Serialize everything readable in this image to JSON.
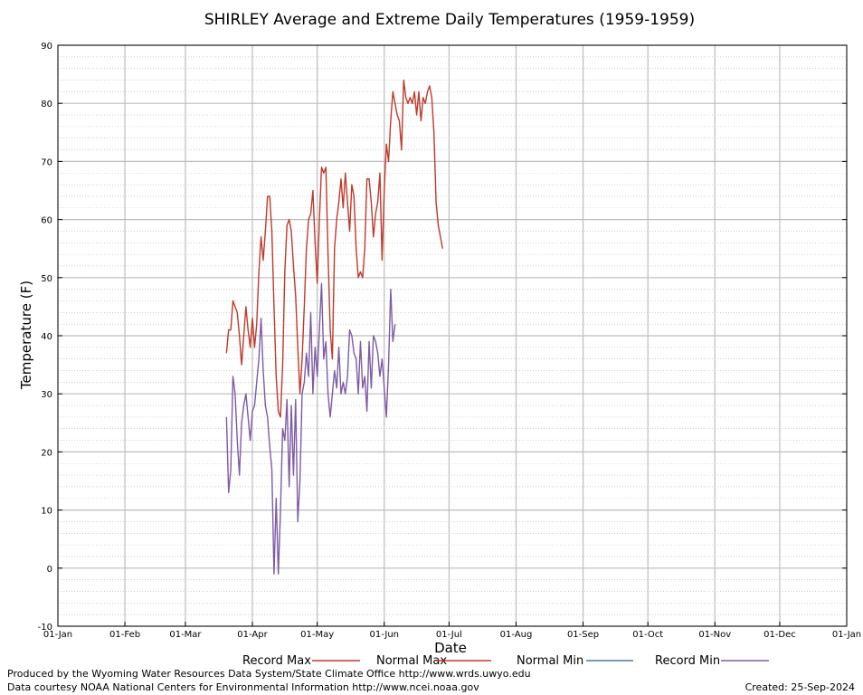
{
  "chart_data": {
    "type": "line",
    "title": "SHIRLEY Average and Extreme Daily Temperatures (1959-1959)",
    "xlabel": "Date",
    "ylabel": "Temperature (F)",
    "ylim": [
      -10,
      90
    ],
    "yticks": [
      -10,
      0,
      10,
      20,
      30,
      40,
      50,
      60,
      70,
      80,
      90
    ],
    "xlim": [
      1,
      366
    ],
    "xticks": [
      {
        "day": 1,
        "label": "01-Jan"
      },
      {
        "day": 32,
        "label": "01-Feb"
      },
      {
        "day": 60,
        "label": "01-Mar"
      },
      {
        "day": 91,
        "label": "01-Apr"
      },
      {
        "day": 121,
        "label": "01-May"
      },
      {
        "day": 152,
        "label": "01-Jun"
      },
      {
        "day": 182,
        "label": "01-Jul"
      },
      {
        "day": 213,
        "label": "01-Aug"
      },
      {
        "day": 244,
        "label": "01-Sep"
      },
      {
        "day": 274,
        "label": "01-Oct"
      },
      {
        "day": 305,
        "label": "01-Nov"
      },
      {
        "day": 335,
        "label": "01-Dec"
      },
      {
        "day": 366,
        "label": "01-Jan"
      }
    ],
    "grid": true,
    "legend_position": "bottom",
    "series": [
      {
        "name": "Record Max",
        "color": "#c0392b",
        "points": [
          [
            79,
            37
          ],
          [
            80,
            41
          ],
          [
            81,
            41
          ],
          [
            82,
            46
          ],
          [
            83,
            45
          ],
          [
            84,
            44
          ],
          [
            85,
            40
          ],
          [
            86,
            35
          ],
          [
            87,
            40
          ],
          [
            88,
            45
          ],
          [
            89,
            41
          ],
          [
            90,
            38
          ],
          [
            91,
            43
          ],
          [
            92,
            38
          ],
          [
            93,
            42
          ],
          [
            94,
            51
          ],
          [
            95,
            57
          ],
          [
            96,
            53
          ],
          [
            97,
            58
          ],
          [
            98,
            64
          ],
          [
            99,
            64
          ],
          [
            100,
            58
          ],
          [
            101,
            45
          ],
          [
            102,
            33
          ],
          [
            103,
            27
          ],
          [
            104,
            26
          ],
          [
            105,
            35
          ],
          [
            106,
            51
          ],
          [
            107,
            59
          ],
          [
            108,
            60
          ],
          [
            109,
            58
          ],
          [
            110,
            52
          ],
          [
            111,
            47
          ],
          [
            112,
            38
          ],
          [
            113,
            30
          ],
          [
            114,
            36
          ],
          [
            115,
            45
          ],
          [
            116,
            55
          ],
          [
            117,
            60
          ],
          [
            118,
            61
          ],
          [
            119,
            65
          ],
          [
            120,
            56
          ],
          [
            121,
            49
          ],
          [
            122,
            60
          ],
          [
            123,
            69
          ],
          [
            124,
            68
          ],
          [
            125,
            69
          ],
          [
            126,
            54
          ],
          [
            127,
            41
          ],
          [
            128,
            36
          ],
          [
            129,
            55
          ],
          [
            130,
            60
          ],
          [
            131,
            63
          ],
          [
            132,
            67
          ],
          [
            133,
            62
          ],
          [
            134,
            68
          ],
          [
            135,
            63
          ],
          [
            136,
            58
          ],
          [
            137,
            66
          ],
          [
            138,
            64
          ],
          [
            139,
            55
          ],
          [
            140,
            50
          ],
          [
            141,
            51
          ],
          [
            142,
            50
          ],
          [
            143,
            55
          ],
          [
            144,
            67
          ],
          [
            145,
            67
          ],
          [
            146,
            63
          ],
          [
            147,
            57
          ],
          [
            148,
            61
          ],
          [
            149,
            63
          ],
          [
            150,
            68
          ],
          [
            151,
            53
          ],
          [
            152,
            65
          ],
          [
            153,
            73
          ],
          [
            154,
            70
          ],
          [
            155,
            77
          ],
          [
            156,
            82
          ],
          [
            157,
            80
          ],
          [
            158,
            78
          ],
          [
            159,
            77
          ],
          [
            160,
            72
          ],
          [
            161,
            84
          ],
          [
            162,
            81
          ],
          [
            163,
            80
          ],
          [
            164,
            81
          ],
          [
            165,
            80
          ],
          [
            166,
            82
          ],
          [
            167,
            78
          ],
          [
            168,
            82
          ],
          [
            169,
            77
          ],
          [
            170,
            81
          ],
          [
            171,
            80
          ],
          [
            172,
            82
          ],
          [
            173,
            83
          ],
          [
            174,
            81
          ],
          [
            175,
            75
          ],
          [
            176,
            63
          ],
          [
            177,
            59
          ],
          [
            178,
            57
          ],
          [
            179,
            55
          ]
        ]
      },
      {
        "name": "Normal Max",
        "color": "#c0392b",
        "points": []
      },
      {
        "name": "Normal Min",
        "color": "#4a7aa7",
        "points": []
      },
      {
        "name": "Record Min",
        "color": "#7d5ba6",
        "points": [
          [
            79,
            26
          ],
          [
            80,
            13
          ],
          [
            81,
            17
          ],
          [
            82,
            33
          ],
          [
            83,
            30
          ],
          [
            84,
            22
          ],
          [
            85,
            16
          ],
          [
            86,
            25
          ],
          [
            87,
            28
          ],
          [
            88,
            30
          ],
          [
            89,
            26
          ],
          [
            90,
            22
          ],
          [
            91,
            27
          ],
          [
            92,
            28
          ],
          [
            93,
            32
          ],
          [
            94,
            36
          ],
          [
            95,
            43
          ],
          [
            96,
            34
          ],
          [
            97,
            28
          ],
          [
            98,
            26
          ],
          [
            99,
            21
          ],
          [
            100,
            17
          ],
          [
            101,
            -1
          ],
          [
            102,
            12
          ],
          [
            103,
            -1
          ],
          [
            104,
            10
          ],
          [
            105,
            24
          ],
          [
            106,
            22
          ],
          [
            107,
            29
          ],
          [
            108,
            14
          ],
          [
            109,
            28
          ],
          [
            110,
            16
          ],
          [
            111,
            29
          ],
          [
            112,
            8
          ],
          [
            113,
            15
          ],
          [
            114,
            30
          ],
          [
            115,
            32
          ],
          [
            116,
            37
          ],
          [
            117,
            33
          ],
          [
            118,
            44
          ],
          [
            119,
            30
          ],
          [
            120,
            38
          ],
          [
            121,
            33
          ],
          [
            122,
            41
          ],
          [
            123,
            49
          ],
          [
            124,
            36
          ],
          [
            125,
            39
          ],
          [
            126,
            30
          ],
          [
            127,
            26
          ],
          [
            128,
            30
          ],
          [
            129,
            34
          ],
          [
            130,
            31
          ],
          [
            131,
            38
          ],
          [
            132,
            30
          ],
          [
            133,
            32
          ],
          [
            134,
            30
          ],
          [
            135,
            33
          ],
          [
            136,
            41
          ],
          [
            137,
            40
          ],
          [
            138,
            37
          ],
          [
            139,
            36
          ],
          [
            140,
            30
          ],
          [
            141,
            39
          ],
          [
            142,
            31
          ],
          [
            143,
            33
          ],
          [
            144,
            27
          ],
          [
            145,
            39
          ],
          [
            146,
            31
          ],
          [
            147,
            40
          ],
          [
            148,
            39
          ],
          [
            149,
            37
          ],
          [
            150,
            33
          ],
          [
            151,
            36
          ],
          [
            152,
            31
          ],
          [
            153,
            26
          ],
          [
            154,
            35
          ],
          [
            155,
            48
          ],
          [
            156,
            39
          ],
          [
            157,
            42
          ]
        ]
      }
    ]
  },
  "footer": {
    "credit_line1": "Produced by the Wyoming Water Resources Data System/State Climate Office http://www.wrds.uwyo.edu",
    "credit_line2": "Data courtesy NOAA National Centers for Environmental Information http://www.ncei.noaa.gov",
    "created": "Created:  25-Sep-2024"
  }
}
